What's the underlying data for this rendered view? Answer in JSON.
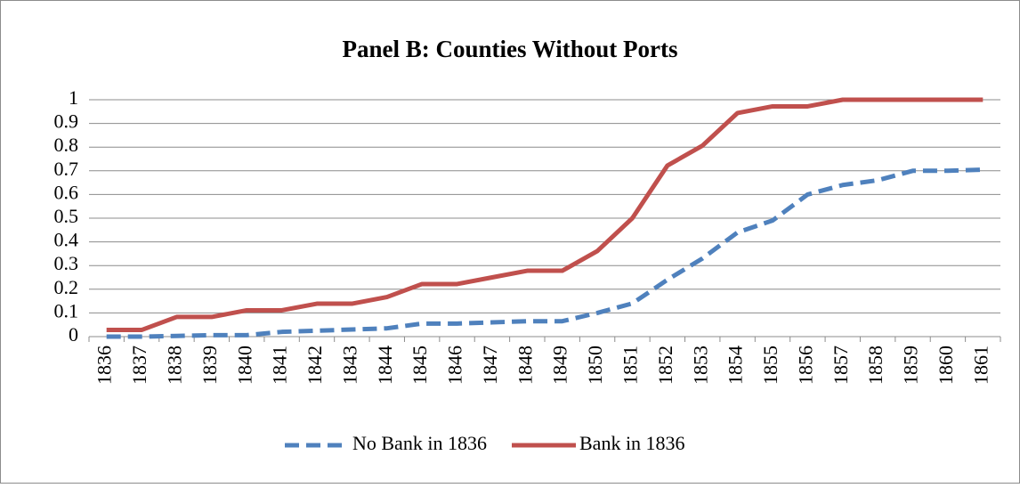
{
  "chart_data": {
    "type": "line",
    "title": "Panel B: Counties Without Ports",
    "categories": [
      "1836",
      "1837",
      "1838",
      "1839",
      "1840",
      "1841",
      "1842",
      "1843",
      "1844",
      "1845",
      "1846",
      "1847",
      "1848",
      "1849",
      "1850",
      "1851",
      "1852",
      "1853",
      "1854",
      "1855",
      "1856",
      "1857",
      "1858",
      "1859",
      "1860",
      "1861"
    ],
    "series": [
      {
        "name": "No Bank in 1836",
        "color": "#4f81bd",
        "dashed": true,
        "values": [
          0,
          0,
          0.003,
          0.006,
          0.006,
          0.02,
          0.025,
          0.03,
          0.035,
          0.055,
          0.055,
          0.06,
          0.065,
          0.065,
          0.1,
          0.14,
          0.24,
          0.33,
          0.44,
          0.49,
          0.6,
          0.64,
          0.66,
          0.7,
          0.7,
          0.705
        ]
      },
      {
        "name": "Bank in 1836",
        "color": "#c0504d",
        "dashed": false,
        "values": [
          0.028,
          0.028,
          0.083,
          0.083,
          0.111,
          0.111,
          0.139,
          0.139,
          0.167,
          0.222,
          0.222,
          0.25,
          0.278,
          0.278,
          0.361,
          0.5,
          0.722,
          0.806,
          0.944,
          0.972,
          0.972,
          1,
          1,
          1,
          1,
          1
        ]
      }
    ],
    "ylim": [
      0,
      1
    ],
    "yticks": [
      0,
      0.1,
      0.2,
      0.3,
      0.4,
      0.5,
      0.6,
      0.7,
      0.8,
      0.9,
      1
    ],
    "grid": true,
    "legend": "bottom"
  }
}
